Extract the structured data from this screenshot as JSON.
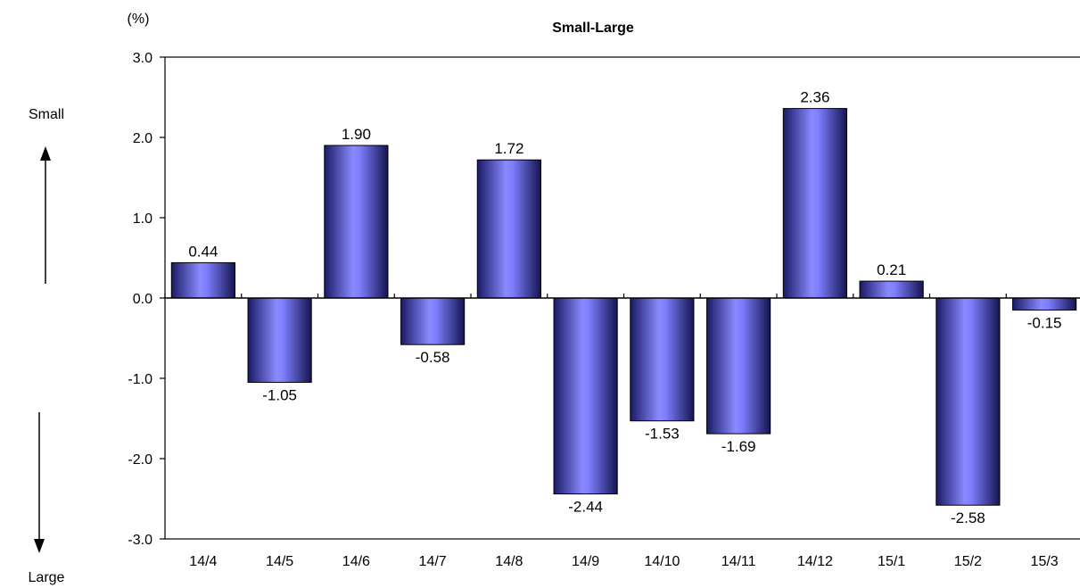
{
  "chart_data": {
    "type": "bar",
    "title": "Small-Large",
    "ylabel": "(%)",
    "xlabel": "",
    "categories": [
      "14/4",
      "14/5",
      "14/6",
      "14/7",
      "14/8",
      "14/9",
      "14/10",
      "14/11",
      "14/12",
      "15/1",
      "15/2",
      "15/3"
    ],
    "values": [
      0.44,
      -1.05,
      1.9,
      -0.58,
      1.72,
      -2.44,
      -1.53,
      -1.69,
      2.36,
      0.21,
      -2.58,
      -0.15
    ],
    "value_labels": [
      "0.44",
      "-1.05",
      "1.90",
      "-0.58",
      "1.72",
      "-2.44",
      "-1.53",
      "-1.69",
      "2.36",
      "0.21",
      "-2.58",
      "-0.15"
    ],
    "ylim": [
      -3.0,
      3.0
    ],
    "yticks": [
      3.0,
      2.0,
      1.0,
      0.0,
      -1.0,
      -2.0,
      -3.0
    ],
    "ytick_labels": [
      "3.0",
      "2.0",
      "1.0",
      "0.0",
      "-1.0",
      "-2.0",
      "-3.0"
    ],
    "grid": false,
    "bar_color": "#7f7fff",
    "annotations": {
      "up_label": "Small",
      "down_label": "Large"
    }
  }
}
